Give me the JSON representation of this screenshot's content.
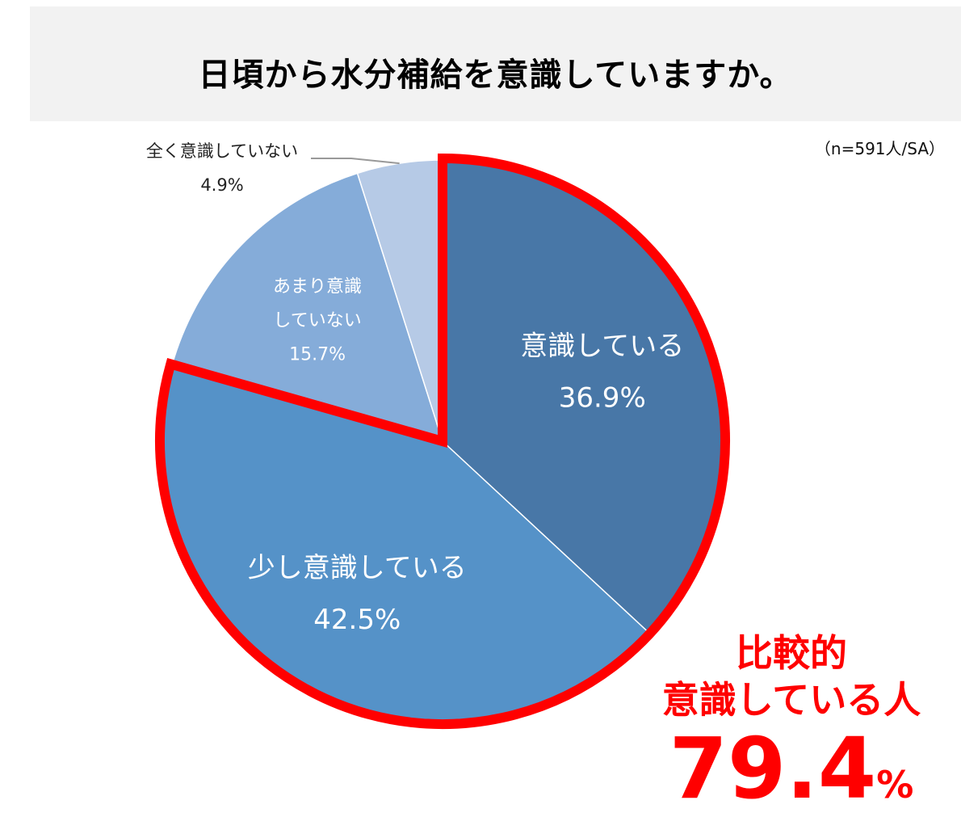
{
  "title": "日頃から水分補給を意識していますか。",
  "sample_note": "（n=591人/SA）",
  "colors": {
    "highlight": "#ff0000",
    "title_band": "#f2f2f2"
  },
  "chart_data": {
    "type": "pie",
    "start": "12 o'clock",
    "direction": "clockwise",
    "slices": [
      {
        "label_lines": [
          "意識している"
        ],
        "value_text": "36.9%",
        "value": 36.9,
        "color": "#4877a7",
        "text_color": "#ffffff"
      },
      {
        "label_lines": [
          "少し意識している"
        ],
        "value_text": "42.5%",
        "value": 42.5,
        "color": "#5592c8",
        "text_color": "#ffffff"
      },
      {
        "label_lines": [
          "あまり意識",
          "していない"
        ],
        "value_text": "15.7%",
        "value": 15.7,
        "color": "#85acd9",
        "text_color": "#ffffff"
      },
      {
        "label_lines": [
          "全く意識していない"
        ],
        "value_text": "4.9%",
        "value": 4.9,
        "color": "#b6cae6",
        "text_color": "#222222"
      }
    ],
    "highlighted_slices": [
      0,
      1
    ]
  },
  "callout": {
    "line1": "比較的",
    "line2": "意識している人",
    "value": "79.4",
    "unit": "%"
  }
}
